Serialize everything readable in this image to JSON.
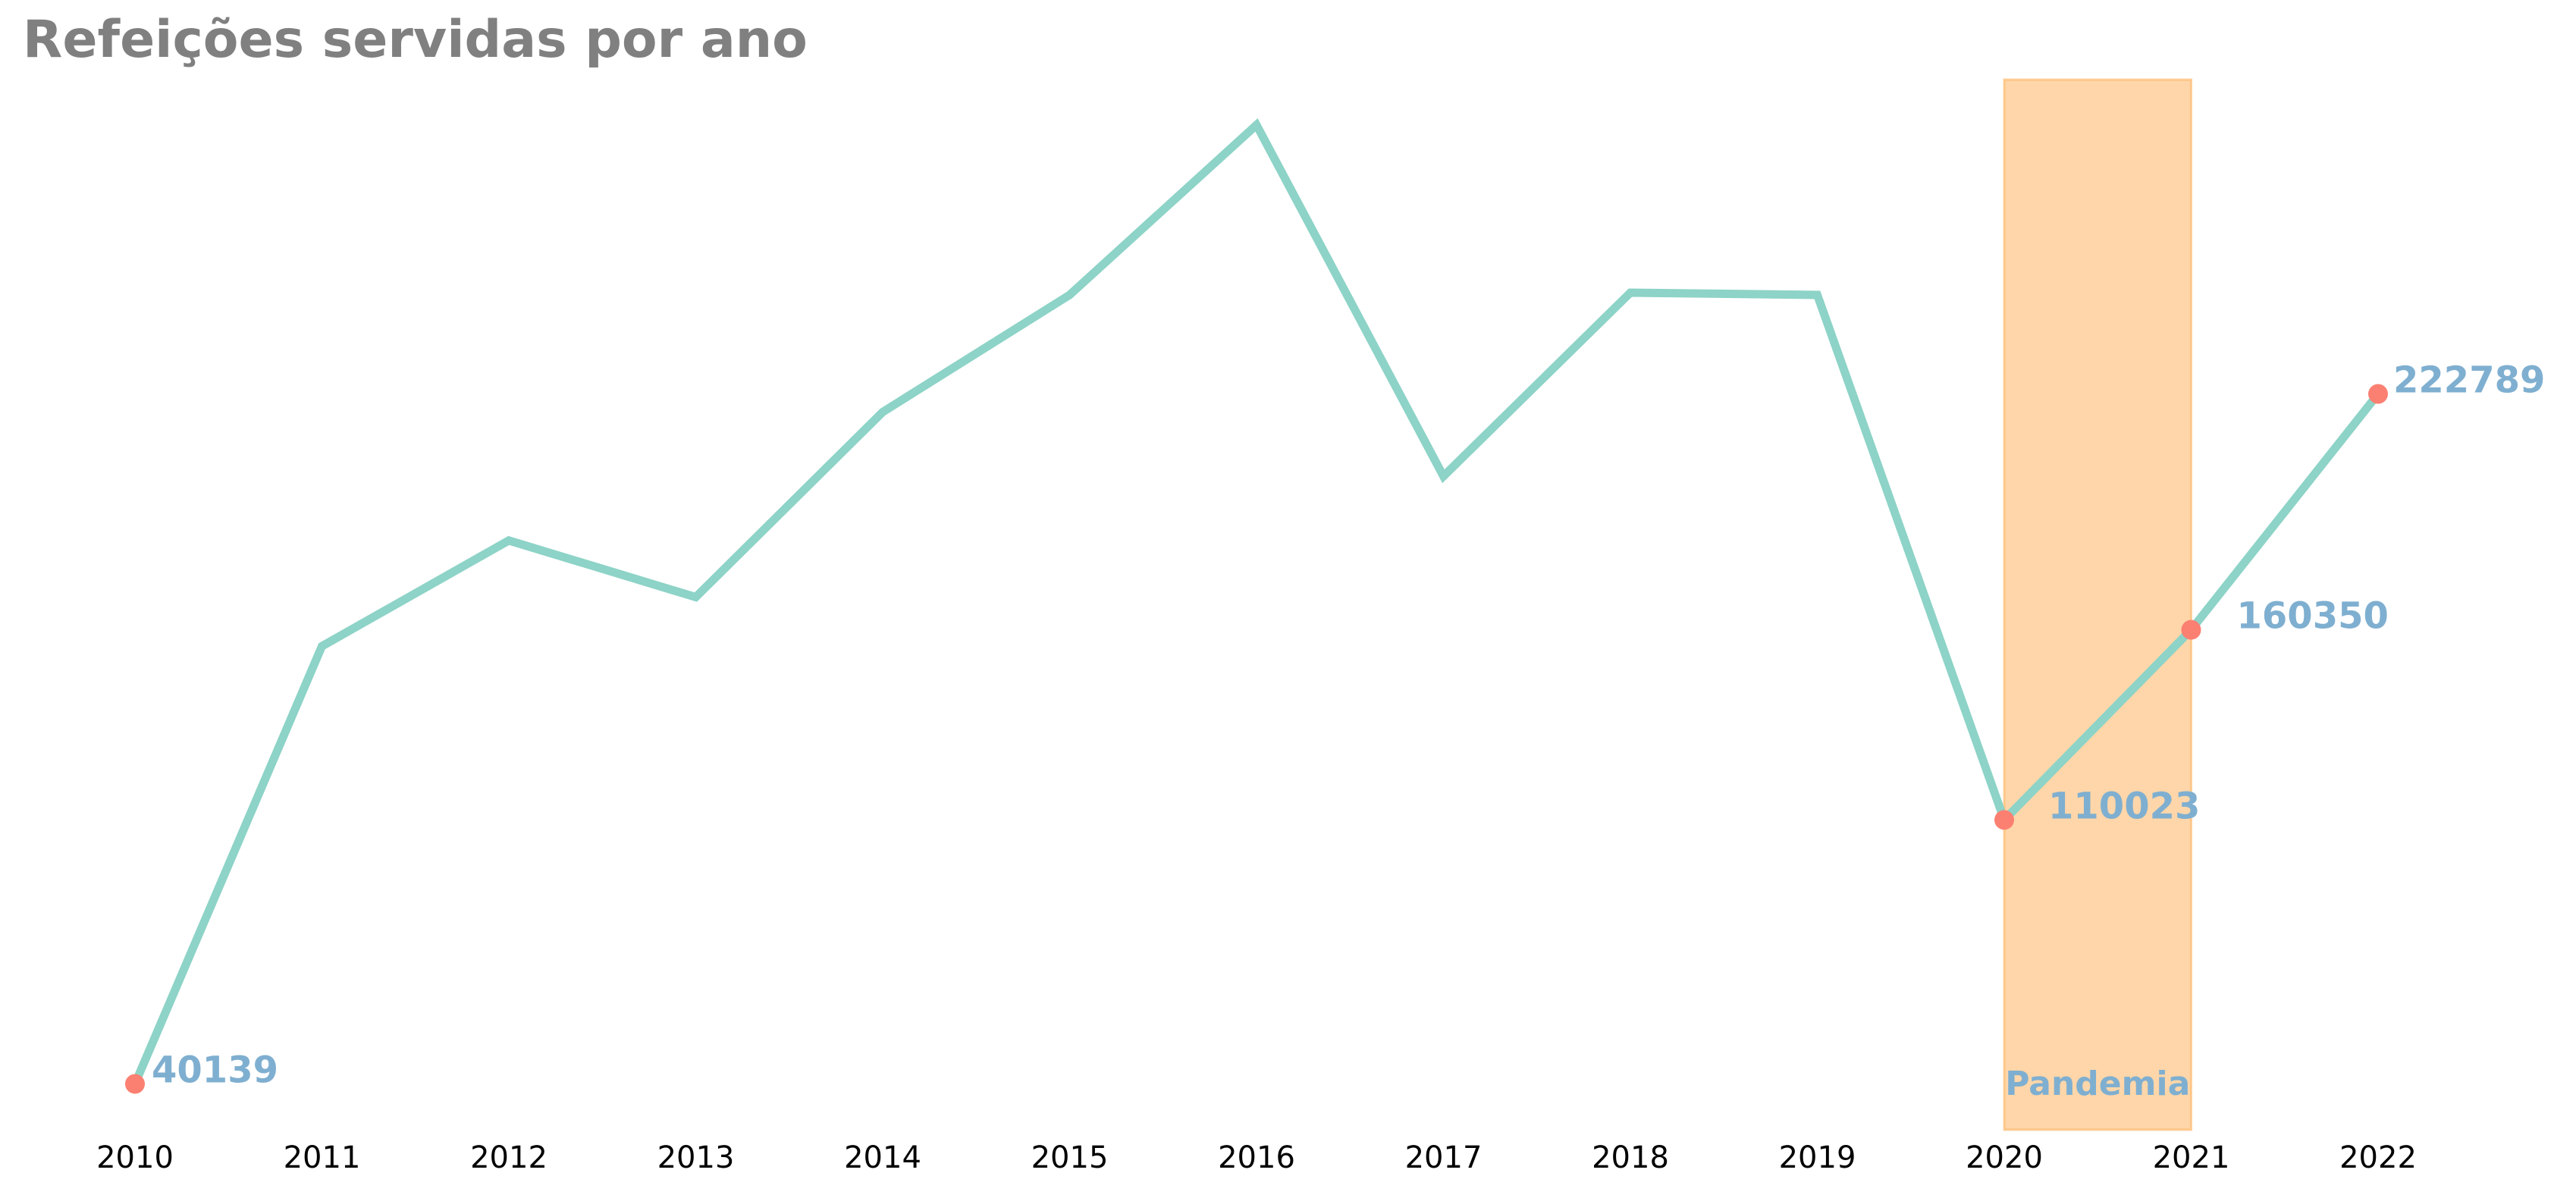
{
  "chart_data": {
    "type": "line",
    "title": "Refeições servidas por ano",
    "xlabel": "",
    "ylabel": "",
    "x": [
      2010,
      2011,
      2012,
      2013,
      2014,
      2015,
      2016,
      2017,
      2018,
      2019,
      2020,
      2021,
      2022
    ],
    "series": [
      {
        "values": [
          40139,
          156000,
          184000,
          169000,
          218000,
          249000,
          294000,
          201000,
          249600,
          249000,
          110023,
          160350,
          222789
        ],
        "color": "#8dd3c7"
      }
    ],
    "highlighted_points": [
      {
        "x": 2010,
        "value": 40139,
        "label": "40139"
      },
      {
        "x": 2020,
        "value": 110023,
        "label": "110023"
      },
      {
        "x": 2021,
        "value": 160350,
        "label": "160350"
      },
      {
        "x": 2022,
        "value": 222789,
        "label": "222789"
      }
    ],
    "marker_color": "#fb8072",
    "label_color": "#7fafd0",
    "shaded_region": {
      "x_start": 2020,
      "x_end": 2021,
      "label": "Pandemia",
      "color": "#fdb462"
    },
    "ylim": [
      28000,
      306000
    ],
    "grid": false,
    "y_axis_visible": false,
    "legend": "none"
  }
}
